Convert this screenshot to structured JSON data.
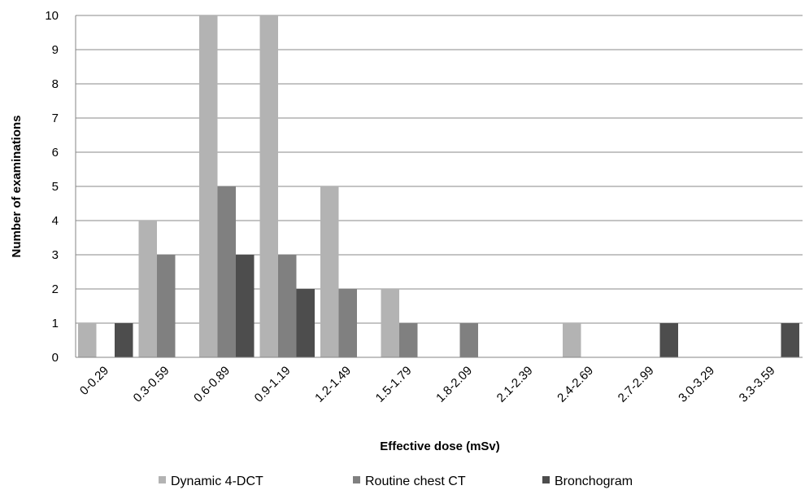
{
  "chart_data": {
    "type": "bar",
    "title": "",
    "xlabel": "Effective dose (mSv)",
    "ylabel": "Number of examinations",
    "ylim": [
      0,
      10
    ],
    "yticks": [
      0,
      1,
      2,
      3,
      4,
      5,
      6,
      7,
      8,
      9,
      10
    ],
    "grid": true,
    "legend_position": "bottom",
    "categories": [
      "0-0.29",
      "0.3-0.59",
      "0.6-0.89",
      "0.9-1.19",
      "1.2-1.49",
      "1.5-1.79",
      "1.8-2.09",
      "2.1-2.39",
      "2.4-2.69",
      "2.7-2.99",
      "3.0-3.29",
      "3.3-3.59"
    ],
    "series": [
      {
        "name": "Dynamic 4-DCT",
        "color": "#b3b3b3",
        "values": [
          1,
          4,
          10,
          10,
          5,
          2,
          0,
          0,
          1,
          0,
          0,
          0
        ]
      },
      {
        "name": "Routine chest CT",
        "color": "#808080",
        "values": [
          0,
          3,
          5,
          3,
          2,
          1,
          1,
          0,
          0,
          0,
          0,
          0
        ]
      },
      {
        "name": "Bronchogram",
        "color": "#4d4d4d",
        "values": [
          1,
          0,
          3,
          2,
          0,
          0,
          0,
          0,
          0,
          1,
          0,
          1
        ]
      }
    ]
  }
}
